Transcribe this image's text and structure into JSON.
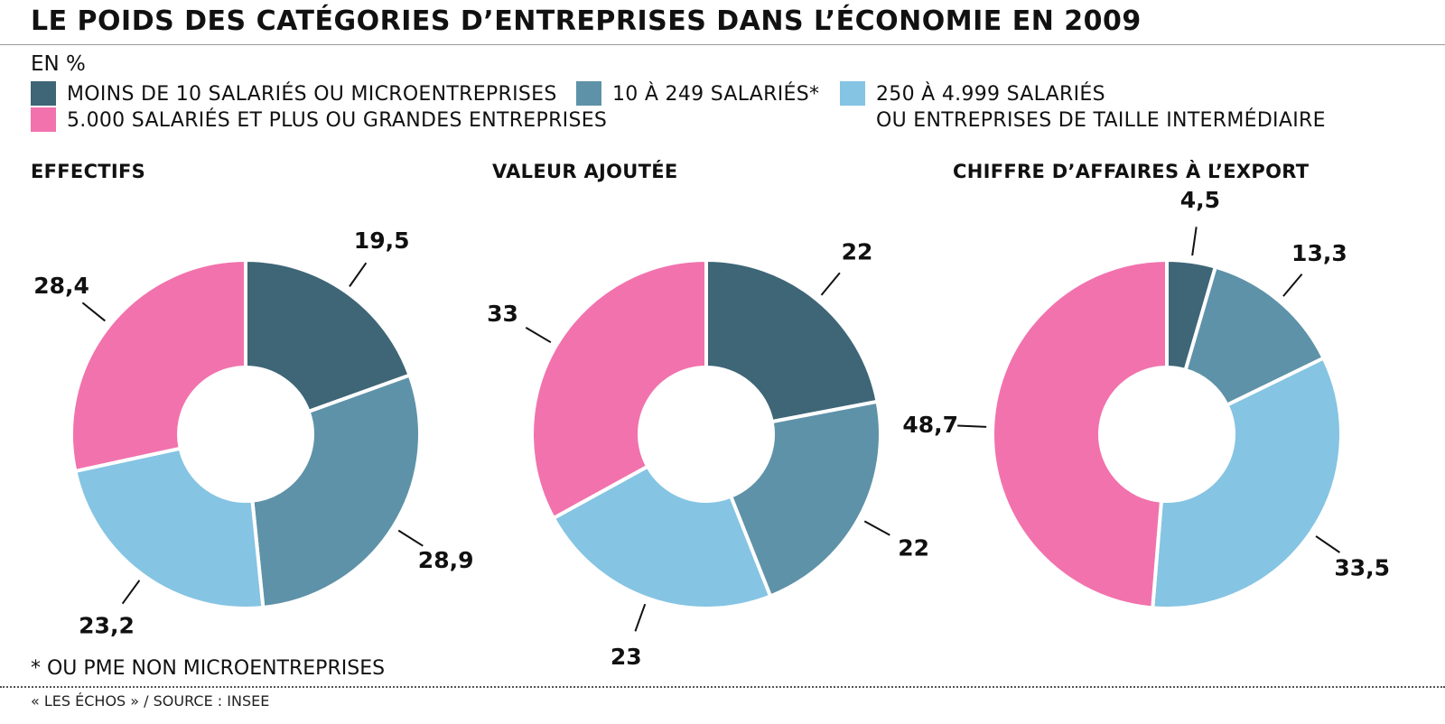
{
  "title": "LE POIDS DES CATÉGORIES D’ENTREPRISES DANS L’ÉCONOMIE EN 2009",
  "unit": "EN %",
  "legend": [
    {
      "lines": [
        "MOINS DE 10 SALARIÉS OU MICROENTREPRISES"
      ],
      "color": "#3e6677"
    },
    {
      "lines": [
        "10 À 249 SALARIÉS*"
      ],
      "color": "#5e92a8"
    },
    {
      "lines": [
        "250 À 4.999 SALARIÉS",
        "OU ENTREPRISES DE TAILLE INTERMÉDIAIRE"
      ],
      "color": "#85c4e3"
    },
    {
      "lines": [
        "5.000 SALARIÉS ET PLUS OU GRANDES ENTREPRISES"
      ],
      "color": "#f272ad"
    }
  ],
  "chart_data": [
    {
      "type": "pie",
      "title": "EFFECTIFS",
      "categories": [
        "MOINS DE 10 SALARIÉS OU MICROENTREPRISES",
        "10 À 249 SALARIÉS*",
        "250 À 4.999 SALARIÉS OU ENTREPRISES DE TAILLE INTERMÉDIAIRE",
        "5.000 SALARIÉS ET PLUS OU GRANDES ENTREPRISES"
      ],
      "values": [
        19.5,
        28.9,
        23.2,
        28.4
      ],
      "labels": [
        "19,5",
        "28,9",
        "23,2",
        "28,4"
      ]
    },
    {
      "type": "pie",
      "title": "VALEUR AJOUTÉE",
      "categories": [
        "MOINS DE 10 SALARIÉS OU MICROENTREPRISES",
        "10 À 249 SALARIÉS*",
        "250 À 4.999 SALARIÉS OU ENTREPRISES DE TAILLE INTERMÉDIAIRE",
        "5.000 SALARIÉS ET PLUS OU GRANDES ENTREPRISES"
      ],
      "values": [
        22,
        22,
        23,
        33
      ],
      "labels": [
        "22",
        "22",
        "23",
        "33"
      ]
    },
    {
      "type": "pie",
      "title": "CHIFFRE D’AFFAIRES À L’EXPORT",
      "categories": [
        "MOINS DE 10 SALARIÉS OU MICROENTREPRISES",
        "10 À 249 SALARIÉS*",
        "250 À 4.999 SALARIÉS OU ENTREPRISES DE TAILLE INTERMÉDIAIRE",
        "5.000 SALARIÉS ET PLUS OU GRANDES ENTREPRISES"
      ],
      "values": [
        4.5,
        13.3,
        33.5,
        48.7
      ],
      "labels": [
        "4,5",
        "13,3",
        "33,5",
        "48,7"
      ]
    }
  ],
  "footnote": "* OU PME NON MICROENTREPRISES",
  "source": "« LES ÉCHOS » / SOURCE : INSEE"
}
